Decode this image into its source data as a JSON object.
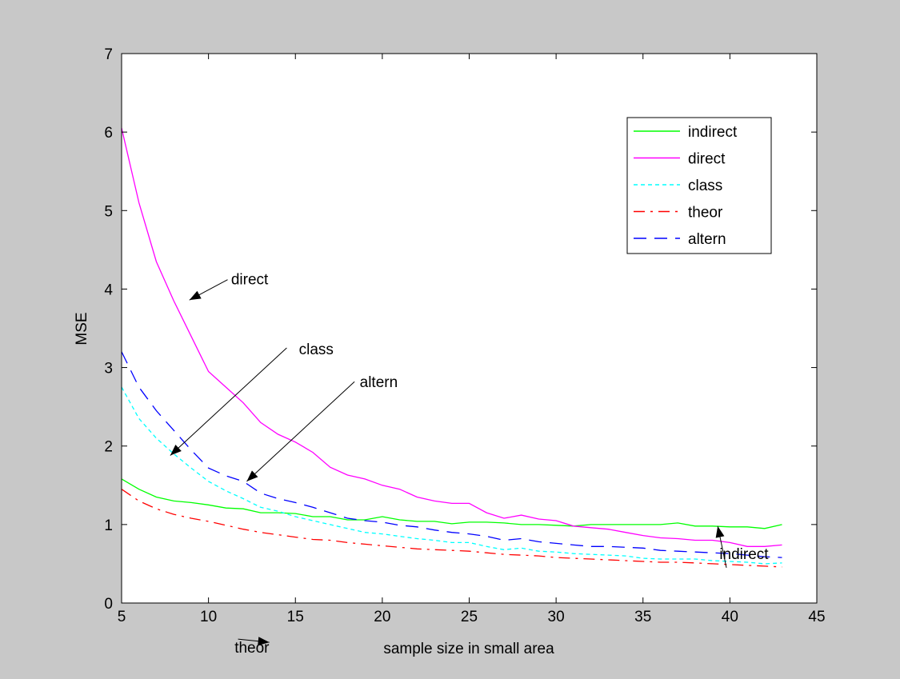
{
  "window": {
    "background": "#c8c8c8"
  },
  "chart_data": {
    "type": "line",
    "title": "",
    "xlabel": "sample size in small area",
    "ylabel": "MSE",
    "xlim": [
      5,
      45
    ],
    "ylim": [
      0,
      7
    ],
    "xticks": [
      "5",
      "10",
      "15",
      "20",
      "25",
      "30",
      "35",
      "40",
      "45"
    ],
    "yticks": [
      "0",
      "1",
      "2",
      "3",
      "4",
      "5",
      "6",
      "7"
    ],
    "grid": false,
    "legend_position": "top-right",
    "x": [
      5,
      6,
      7,
      8,
      9,
      10,
      11,
      12,
      13,
      14,
      15,
      16,
      17,
      18,
      19,
      20,
      21,
      22,
      23,
      24,
      25,
      26,
      27,
      28,
      29,
      30,
      31,
      32,
      33,
      34,
      35,
      36,
      37,
      38,
      39,
      40,
      41,
      42,
      43
    ],
    "series": [
      {
        "name": "indirect",
        "color": "#00ff00",
        "dash": "solid",
        "values": [
          1.58,
          1.45,
          1.35,
          1.3,
          1.28,
          1.25,
          1.21,
          1.2,
          1.15,
          1.15,
          1.14,
          1.1,
          1.1,
          1.06,
          1.06,
          1.1,
          1.06,
          1.04,
          1.04,
          1.01,
          1.03,
          1.03,
          1.02,
          1.0,
          1.0,
          0.99,
          0.98,
          1.0,
          1.0,
          1.0,
          1.0,
          1.0,
          1.02,
          0.98,
          0.98,
          0.97,
          0.97,
          0.95,
          1.0
        ]
      },
      {
        "name": "direct",
        "color": "#ff00ff",
        "dash": "solid",
        "values": [
          6.05,
          5.1,
          4.35,
          3.85,
          3.4,
          2.95,
          2.75,
          2.55,
          2.3,
          2.15,
          2.05,
          1.92,
          1.73,
          1.63,
          1.58,
          1.5,
          1.45,
          1.35,
          1.3,
          1.27,
          1.27,
          1.15,
          1.08,
          1.12,
          1.07,
          1.05,
          0.98,
          0.96,
          0.94,
          0.9,
          0.86,
          0.83,
          0.82,
          0.8,
          0.8,
          0.77,
          0.72,
          0.72,
          0.74
        ]
      },
      {
        "name": "class",
        "color": "#00ffff",
        "dash": "dotted",
        "values": [
          2.75,
          2.35,
          2.1,
          1.9,
          1.72,
          1.55,
          1.43,
          1.33,
          1.22,
          1.17,
          1.1,
          1.05,
          1.0,
          0.95,
          0.9,
          0.88,
          0.85,
          0.82,
          0.8,
          0.77,
          0.77,
          0.72,
          0.68,
          0.7,
          0.66,
          0.65,
          0.63,
          0.62,
          0.61,
          0.6,
          0.57,
          0.56,
          0.56,
          0.56,
          0.54,
          0.53,
          0.52,
          0.5,
          0.51
        ]
      },
      {
        "name": "theor",
        "color": "#ff0000",
        "dash": "dashdot",
        "values": [
          1.45,
          1.3,
          1.2,
          1.13,
          1.08,
          1.04,
          0.99,
          0.94,
          0.9,
          0.87,
          0.84,
          0.81,
          0.8,
          0.77,
          0.75,
          0.73,
          0.71,
          0.69,
          0.68,
          0.67,
          0.66,
          0.64,
          0.62,
          0.61,
          0.6,
          0.58,
          0.57,
          0.56,
          0.55,
          0.54,
          0.53,
          0.52,
          0.52,
          0.51,
          0.5,
          0.49,
          0.48,
          0.47,
          0.46
        ]
      },
      {
        "name": "altern",
        "color": "#0000ff",
        "dash": "dashed",
        "values": [
          3.2,
          2.75,
          2.45,
          2.2,
          1.95,
          1.72,
          1.62,
          1.55,
          1.4,
          1.33,
          1.28,
          1.22,
          1.15,
          1.08,
          1.05,
          1.03,
          0.99,
          0.97,
          0.93,
          0.9,
          0.88,
          0.85,
          0.8,
          0.82,
          0.78,
          0.76,
          0.74,
          0.72,
          0.72,
          0.71,
          0.7,
          0.67,
          0.66,
          0.65,
          0.64,
          0.63,
          0.61,
          0.59,
          0.58
        ]
      }
    ],
    "annotations": [
      {
        "text": "direct",
        "text_at": [
          11.3,
          4.06
        ],
        "arrow_from": [
          11.1,
          4.12
        ],
        "arrow_to": [
          8.9,
          3.86
        ]
      },
      {
        "text": "class",
        "text_at": [
          15.2,
          3.17
        ],
        "arrow_from": [
          14.5,
          3.25
        ],
        "arrow_to": [
          7.8,
          1.88
        ]
      },
      {
        "text": "altern",
        "text_at": [
          18.7,
          2.75
        ],
        "arrow_from": [
          18.4,
          2.82
        ],
        "arrow_to": [
          12.2,
          1.55
        ]
      },
      {
        "text": "indirect",
        "text_at": [
          39.4,
          0.56
        ],
        "arrow_from": [
          39.8,
          0.45
        ],
        "arrow_to": [
          39.3,
          0.98
        ]
      },
      {
        "text": "theor",
        "text_at": [
          11.5,
          -0.63
        ],
        "arrow_from": [
          11.7,
          -0.46
        ],
        "arrow_to": [
          13.5,
          -0.5
        ]
      }
    ]
  }
}
